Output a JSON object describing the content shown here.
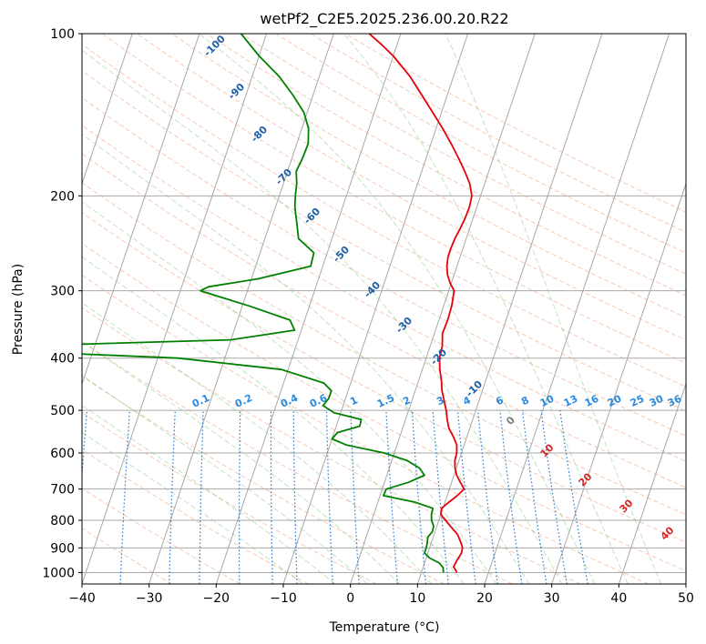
{
  "chart_data": {
    "type": "line",
    "title": "wetPf2_C2E5.2025.236.00.20.R22",
    "xlabel": "Temperature (°C)",
    "ylabel": "Pressure (hPa)",
    "xlim": [
      -40,
      50
    ],
    "ylim": [
      1050,
      100
    ],
    "y_scale": "log",
    "grid": true,
    "x_ticks": [
      "−40",
      "−30",
      "−20",
      "−10",
      "0",
      "10",
      "20",
      "30",
      "40",
      "50"
    ],
    "y_ticks": [
      "100",
      "200",
      "300",
      "400",
      "500",
      "600",
      "700",
      "800",
      "900",
      "1000"
    ],
    "skew_labels": [
      "-100",
      "-90",
      "-80",
      "-70",
      "-60",
      "-50",
      "-40",
      "-30",
      "-20",
      "-10"
    ],
    "mixing_ratio_labels": [
      "0.1",
      "0.2",
      "0.4",
      "0.6",
      "1",
      "1.5",
      "2",
      "3",
      "4",
      "6",
      "8",
      "10",
      "13",
      "16",
      "20",
      "25",
      "30",
      "36"
    ],
    "moist_adiabat_labels": [
      "0",
      "10",
      "20",
      "30",
      "40"
    ],
    "series": [
      {
        "color": "#e8000b",
        "points": [
          [
            1000,
            15.3
          ],
          [
            975,
            14.5
          ],
          [
            950,
            14.7
          ],
          [
            920,
            15
          ],
          [
            900,
            14.9
          ],
          [
            880,
            14.4
          ],
          [
            850,
            13.5
          ],
          [
            820,
            12
          ],
          [
            800,
            11
          ],
          [
            780,
            10
          ],
          [
            760,
            9.8
          ],
          [
            740,
            10.6
          ],
          [
            720,
            11.5
          ],
          [
            700,
            12.2
          ],
          [
            680,
            11.3
          ],
          [
            660,
            10.4
          ],
          [
            640,
            9.8
          ],
          [
            620,
            9.4
          ],
          [
            600,
            9.3
          ],
          [
            580,
            8.9
          ],
          [
            560,
            8
          ],
          [
            540,
            6.9
          ],
          [
            520,
            6.2
          ],
          [
            500,
            5.6
          ],
          [
            480,
            4.8
          ],
          [
            460,
            4
          ],
          [
            440,
            3.4
          ],
          [
            420,
            2.6
          ],
          [
            400,
            2
          ],
          [
            380,
            1.8
          ],
          [
            360,
            1.2
          ],
          [
            340,
            1.3
          ],
          [
            320,
            1.2
          ],
          [
            300,
            0.8
          ],
          [
            290,
            -0.2
          ],
          [
            280,
            -1
          ],
          [
            270,
            -1.5
          ],
          [
            260,
            -1.8
          ],
          [
            250,
            -1.8
          ],
          [
            240,
            -1.7
          ],
          [
            230,
            -1.4
          ],
          [
            220,
            -1.2
          ],
          [
            210,
            -1.1
          ],
          [
            200,
            -1.3
          ],
          [
            190,
            -2.2
          ],
          [
            180,
            -3.6
          ],
          [
            170,
            -5.2
          ],
          [
            160,
            -7
          ],
          [
            150,
            -9
          ],
          [
            140,
            -11.3
          ],
          [
            130,
            -13.8
          ],
          [
            120,
            -16.5
          ],
          [
            110,
            -20
          ],
          [
            105,
            -22.2
          ],
          [
            100,
            -24.7
          ]
        ]
      },
      {
        "color": "#008000",
        "points": [
          [
            1000,
            13.3
          ],
          [
            980,
            13
          ],
          [
            960,
            12.2
          ],
          [
            940,
            10.5
          ],
          [
            920,
            9.5
          ],
          [
            900,
            9.5
          ],
          [
            880,
            9.4
          ],
          [
            860,
            9.2
          ],
          [
            840,
            9.6
          ],
          [
            820,
            9.5
          ],
          [
            800,
            8.9
          ],
          [
            780,
            8.6
          ],
          [
            760,
            8.5
          ],
          [
            740,
            5.5
          ],
          [
            720,
            0.5
          ],
          [
            700,
            0.6
          ],
          [
            680,
            3.6
          ],
          [
            660,
            5.6
          ],
          [
            640,
            4.5
          ],
          [
            620,
            2.3
          ],
          [
            600,
            -1.5
          ],
          [
            580,
            -7.5
          ],
          [
            565,
            -10
          ],
          [
            550,
            -9.5
          ],
          [
            535,
            -6.5
          ],
          [
            520,
            -6.6
          ],
          [
            505,
            -11
          ],
          [
            490,
            -13
          ],
          [
            475,
            -12.5
          ],
          [
            460,
            -12.5
          ],
          [
            445,
            -14
          ],
          [
            420,
            -21
          ],
          [
            400,
            -37
          ],
          [
            390,
            -58
          ],
          [
            380,
            -62
          ],
          [
            370,
            -30
          ],
          [
            355,
            -21
          ],
          [
            340,
            -22.2
          ],
          [
            320,
            -29
          ],
          [
            305,
            -35
          ],
          [
            300,
            -37
          ],
          [
            295,
            -36
          ],
          [
            285,
            -29
          ],
          [
            270,
            -21.8
          ],
          [
            255,
            -22
          ],
          [
            240,
            -25
          ],
          [
            225,
            -26
          ],
          [
            210,
            -27.1
          ],
          [
            200,
            -27.6
          ],
          [
            190,
            -28
          ],
          [
            180,
            -28.7
          ],
          [
            170,
            -28.4
          ],
          [
            160,
            -28.3
          ],
          [
            150,
            -29
          ],
          [
            140,
            -30.5
          ],
          [
            130,
            -33
          ],
          [
            120,
            -36
          ],
          [
            110,
            -40
          ],
          [
            100,
            -43.8
          ]
        ]
      }
    ]
  }
}
